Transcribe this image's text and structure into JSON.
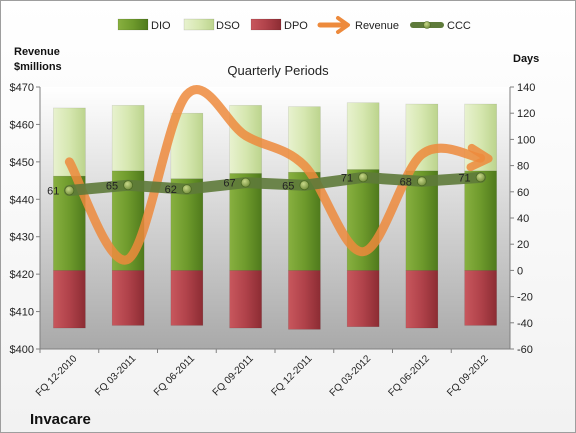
{
  "chart_data": {
    "type": "bar",
    "title": "Quarterly Periods",
    "company": "Invacare",
    "left_axis_label": [
      "Revenue",
      "$millions"
    ],
    "right_axis_label": "Days",
    "categories": [
      "FQ 12-2010",
      "FQ 03-2011",
      "FQ 06-2011",
      "FQ 09-2011",
      "FQ 12-2011",
      "FQ 03-2012",
      "FQ 06-2012",
      "FQ 09-2012"
    ],
    "left_ylim": [
      400,
      470
    ],
    "left_ticks": [
      400,
      410,
      420,
      430,
      440,
      450,
      460,
      470
    ],
    "left_tick_labels": [
      "$400",
      "$410",
      "$420",
      "$430",
      "$440",
      "$450",
      "$460",
      "$470"
    ],
    "right_ylim": [
      -60,
      140
    ],
    "right_ticks": [
      -60,
      -40,
      -20,
      0,
      20,
      40,
      60,
      80,
      100,
      120,
      140
    ],
    "right_tick_labels": [
      "-60",
      "-40",
      "-20",
      "0",
      "20",
      "40",
      "60",
      "80",
      "100",
      "120",
      "140"
    ],
    "series": [
      {
        "name": "DIO",
        "type": "bar",
        "axis": "right",
        "color": "#6e9a2c",
        "values": [
          72,
          76,
          70,
          74,
          75,
          77,
          76,
          76
        ]
      },
      {
        "name": "DSO",
        "type": "bar",
        "axis": "right",
        "color": "#d6e7b0",
        "values": [
          52,
          50,
          50,
          52,
          50,
          51,
          51,
          51
        ]
      },
      {
        "name": "DPO",
        "type": "bar",
        "axis": "right",
        "color": "#b0424a",
        "values": [
          -44,
          -42,
          -42,
          -44,
          -45,
          -43,
          -44,
          -42
        ]
      },
      {
        "name": "Revenue",
        "type": "line",
        "axis": "left",
        "color": "#ed8a3c",
        "values": [
          450,
          424,
          468,
          457,
          449,
          426,
          452,
          451
        ]
      },
      {
        "name": "CCC",
        "type": "line",
        "axis": "right",
        "color": "#5e7a3a",
        "values": [
          61,
          65,
          62,
          67,
          65,
          71,
          68,
          71
        ]
      }
    ],
    "legend_position": "top",
    "grid": false
  }
}
